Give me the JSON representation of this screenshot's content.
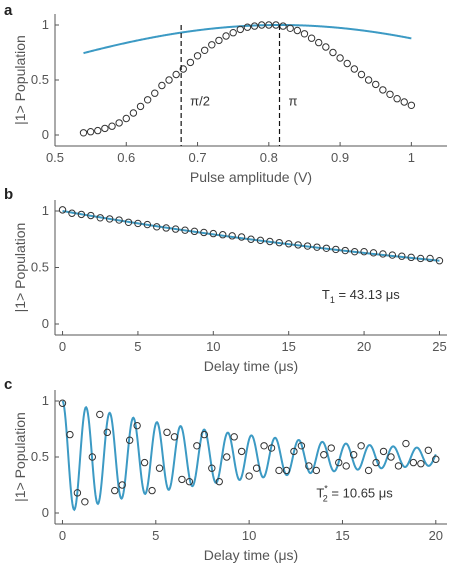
{
  "chart_data": [
    {
      "panel": "a",
      "type": "scatter",
      "xlabel": "Pulse amplitude (V)",
      "ylabel": "|1> Population",
      "xlim": [
        0.5,
        1.05
      ],
      "ylim": [
        0,
        1
      ],
      "xticks": [
        "0.5",
        "0.6",
        "0.7",
        "0.8",
        "0.9",
        "1"
      ],
      "yticks": [
        "0",
        "0.5",
        "1"
      ],
      "x": [
        0.54,
        0.55,
        0.56,
        0.57,
        0.58,
        0.59,
        0.6,
        0.61,
        0.62,
        0.63,
        0.64,
        0.65,
        0.66,
        0.67,
        0.68,
        0.69,
        0.7,
        0.71,
        0.72,
        0.73,
        0.74,
        0.75,
        0.76,
        0.77,
        0.78,
        0.79,
        0.8,
        0.81,
        0.82,
        0.83,
        0.84,
        0.85,
        0.86,
        0.87,
        0.88,
        0.89,
        0.9,
        0.91,
        0.92,
        0.93,
        0.94,
        0.95,
        0.96,
        0.97,
        0.98,
        0.99,
        1.0
      ],
      "y": [
        0.02,
        0.03,
        0.04,
        0.06,
        0.08,
        0.11,
        0.15,
        0.2,
        0.26,
        0.32,
        0.38,
        0.45,
        0.5,
        0.55,
        0.6,
        0.66,
        0.72,
        0.77,
        0.82,
        0.86,
        0.9,
        0.93,
        0.96,
        0.98,
        0.99,
        1.0,
        1.0,
        1.0,
        0.99,
        0.97,
        0.95,
        0.92,
        0.88,
        0.84,
        0.8,
        0.75,
        0.7,
        0.65,
        0.6,
        0.55,
        0.5,
        0.46,
        0.41,
        0.37,
        0.33,
        0.3,
        0.27
      ],
      "fit": {
        "type": "cos2",
        "x0": 0.5,
        "period": 1.1,
        "phi": -0.0,
        "scale": 0.815
      },
      "vlines": [
        {
          "x": 0.677,
          "label": "π/2"
        },
        {
          "x": 0.815,
          "label": "π"
        }
      ]
    },
    {
      "panel": "b",
      "type": "scatter",
      "xlabel": "Delay time (μs)",
      "ylabel": "|1> Population",
      "xlim": [
        -0.5,
        25.5
      ],
      "ylim": [
        0,
        1
      ],
      "xticks": [
        "0",
        "5",
        "10",
        "15",
        "20",
        "25"
      ],
      "yticks": [
        "0",
        "0.5",
        "1"
      ],
      "x": [
        0,
        0.625,
        1.25,
        1.875,
        2.5,
        3.125,
        3.75,
        4.375,
        5,
        5.625,
        6.25,
        6.875,
        7.5,
        8.125,
        8.75,
        9.375,
        10,
        10.625,
        11.25,
        11.875,
        12.5,
        13.125,
        13.75,
        14.375,
        15,
        15.625,
        16.25,
        16.875,
        17.5,
        18.125,
        18.75,
        19.375,
        20,
        20.625,
        21.25,
        21.875,
        22.5,
        23.125,
        23.75,
        24.375,
        25
      ],
      "y": [
        1.01,
        0.98,
        0.97,
        0.96,
        0.94,
        0.93,
        0.92,
        0.9,
        0.89,
        0.88,
        0.86,
        0.85,
        0.84,
        0.83,
        0.82,
        0.81,
        0.8,
        0.79,
        0.78,
        0.77,
        0.75,
        0.74,
        0.73,
        0.72,
        0.71,
        0.7,
        0.69,
        0.68,
        0.67,
        0.66,
        0.65,
        0.64,
        0.64,
        0.63,
        0.62,
        0.61,
        0.6,
        0.59,
        0.58,
        0.58,
        0.56
      ],
      "fit": {
        "type": "exp",
        "T": 43.13,
        "amp": 1.0
      },
      "annotation": {
        "text_prefix": "T",
        "subscript": "1",
        "text_suffix": " = 43.13 μs"
      }
    },
    {
      "panel": "c",
      "type": "scatter",
      "xlabel": "Delay time (μs)",
      "ylabel": "|1> Population",
      "xlim": [
        -0.4,
        20.6
      ],
      "ylim": [
        0,
        1
      ],
      "xticks": [
        "0",
        "5",
        "10",
        "15",
        "20"
      ],
      "yticks": [
        "0",
        "0.5",
        "1"
      ],
      "x": [
        0,
        0.4,
        0.8,
        1.2,
        1.6,
        2.0,
        2.4,
        2.8,
        3.2,
        3.6,
        4.0,
        4.4,
        4.8,
        5.2,
        5.6,
        6.0,
        6.4,
        6.8,
        7.2,
        7.6,
        8.0,
        8.4,
        8.8,
        9.2,
        9.6,
        10.0,
        10.4,
        10.8,
        11.2,
        11.6,
        12.0,
        12.4,
        12.8,
        13.2,
        13.6,
        14.0,
        14.4,
        14.8,
        15.2,
        15.6,
        16.0,
        16.4,
        16.8,
        17.2,
        17.6,
        18.0,
        18.4,
        18.8,
        19.2,
        19.6,
        20.0
      ],
      "y": [
        0.98,
        0.7,
        0.18,
        0.1,
        0.5,
        0.88,
        0.72,
        0.2,
        0.25,
        0.65,
        0.78,
        0.45,
        0.2,
        0.4,
        0.72,
        0.68,
        0.3,
        0.28,
        0.6,
        0.7,
        0.4,
        0.28,
        0.5,
        0.68,
        0.55,
        0.33,
        0.4,
        0.6,
        0.58,
        0.38,
        0.38,
        0.55,
        0.6,
        0.42,
        0.38,
        0.52,
        0.58,
        0.45,
        0.42,
        0.52,
        0.6,
        0.38,
        0.45,
        0.55,
        0.5,
        0.42,
        0.62,
        0.45,
        0.44,
        0.56,
        0.48
      ],
      "fit": {
        "type": "ramsey",
        "T": 10.65,
        "freq": 0.79
      },
      "annotation": {
        "text_prefix": "T",
        "subscript": "2",
        "superscript": "*",
        "text_suffix": " = 10.65 μs"
      }
    }
  ],
  "style": {
    "marker_color": "#333333",
    "fit_color": "#3c9ac4",
    "axis_color": "#555555",
    "vline_color": "#111111"
  }
}
